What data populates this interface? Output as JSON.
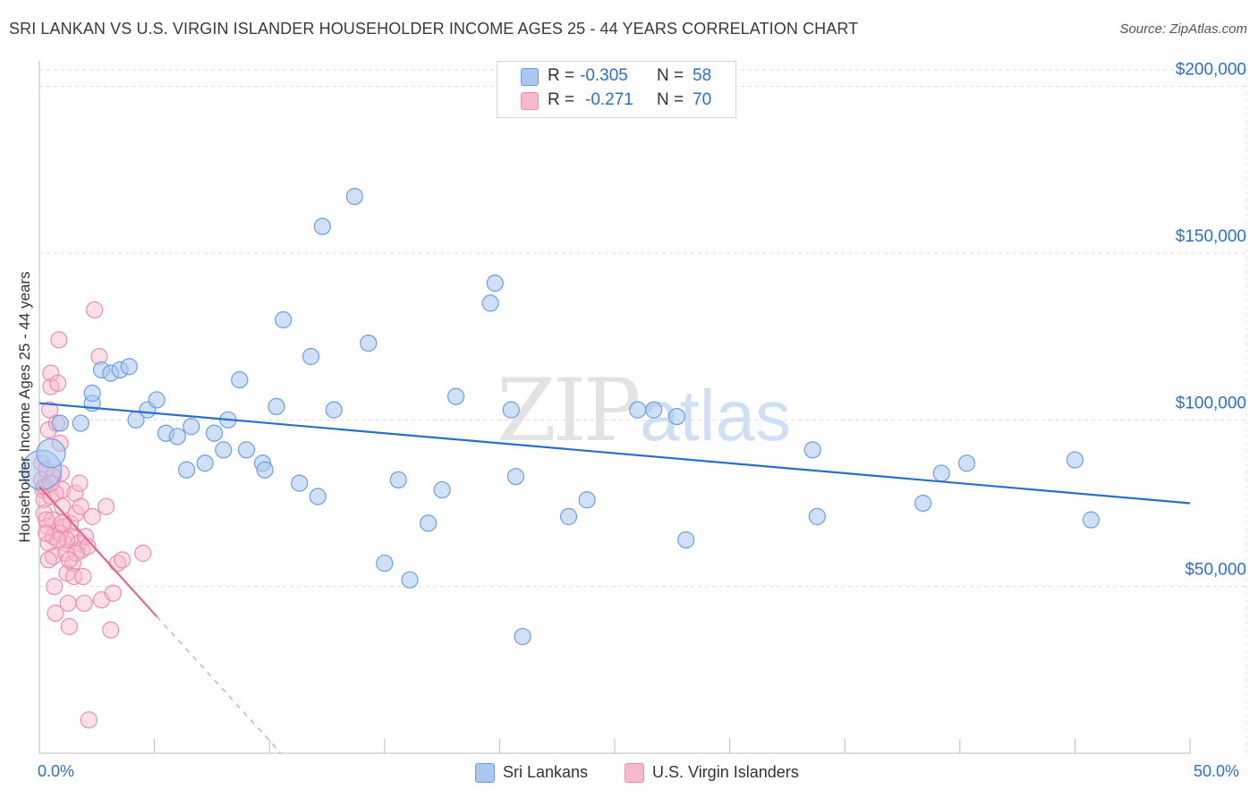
{
  "header": {
    "title": "SRI LANKAN VS U.S. VIRGIN ISLANDER HOUSEHOLDER INCOME AGES 25 - 44 YEARS CORRELATION CHART",
    "source": "Source: ZipAtlas.com"
  },
  "watermark": {
    "part1": "ZIP",
    "part2": "atlas"
  },
  "colors": {
    "blue_fill": "#aac7f0",
    "blue_stroke": "#6d9ee0",
    "blue_line": "#2a6fcb",
    "pink_fill": "#f6b8cc",
    "pink_stroke": "#ec8fad",
    "pink_line": "#e8638f",
    "grid": "#dddddd",
    "tick_label": "#2f6fc6"
  },
  "legend": {
    "rows": [
      {
        "r_label": "R = ",
        "r_value": "-0.305",
        "n_label": "N = ",
        "n_value": "58"
      },
      {
        "r_label": "R = ",
        "r_value": "-0.271",
        "n_label": "N = ",
        "n_value": "70"
      }
    ]
  },
  "chart_data": {
    "type": "scatter",
    "title": "SRI LANKAN VS U.S. VIRGIN ISLANDER HOUSEHOLDER INCOME AGES 25 - 44 YEARS CORRELATION CHART",
    "xlabel": "",
    "ylabel": "Householder Income Ages 25 - 44 years",
    "xlim": [
      0,
      50
    ],
    "ylim": [
      0,
      205000
    ],
    "x_tick_labels": [
      "0.0%",
      "50.0%"
    ],
    "y_ticks": [
      {
        "value": 50000,
        "label": "$50,000"
      },
      {
        "value": 100000,
        "label": "$100,000"
      },
      {
        "value": 150000,
        "label": "$150,000"
      },
      {
        "value": 200000,
        "label": "$200,000"
      }
    ],
    "legend_position": "top-center",
    "series": [
      {
        "name": "Sri Lankans",
        "color": "#aac7f0",
        "r": -0.305,
        "n": 58,
        "trend": {
          "x0": 0,
          "y0": 105000,
          "x1": 50,
          "y1": 75000
        },
        "points": [
          [
            0.1,
            85000,
            22
          ],
          [
            0.5,
            90000,
            16
          ],
          [
            0.9,
            99000,
            9
          ],
          [
            1.8,
            99000,
            9
          ],
          [
            2.3,
            105000,
            9
          ],
          [
            2.3,
            108000,
            9
          ],
          [
            2.7,
            115000,
            9
          ],
          [
            3.1,
            114000,
            9
          ],
          [
            3.5,
            115000,
            9
          ],
          [
            3.9,
            116000,
            9
          ],
          [
            4.2,
            100000,
            9
          ],
          [
            4.7,
            103000,
            9
          ],
          [
            5.1,
            106000,
            9
          ],
          [
            5.5,
            96000,
            9
          ],
          [
            6.0,
            95000,
            9
          ],
          [
            6.4,
            85000,
            9
          ],
          [
            6.6,
            98000,
            9
          ],
          [
            7.2,
            87000,
            9
          ],
          [
            7.6,
            96000,
            9
          ],
          [
            8.0,
            91000,
            9
          ],
          [
            8.2,
            100000,
            9
          ],
          [
            8.7,
            112000,
            9
          ],
          [
            9.0,
            91000,
            9
          ],
          [
            9.7,
            87000,
            9
          ],
          [
            9.8,
            85000,
            9
          ],
          [
            10.3,
            104000,
            9
          ],
          [
            10.6,
            130000,
            9
          ],
          [
            11.3,
            81000,
            9
          ],
          [
            11.8,
            119000,
            9
          ],
          [
            12.3,
            158000,
            9
          ],
          [
            12.1,
            77000,
            9
          ],
          [
            12.8,
            103000,
            9
          ],
          [
            13.7,
            167000,
            9
          ],
          [
            14.3,
            123000,
            9
          ],
          [
            15.0,
            57000,
            9
          ],
          [
            15.6,
            82000,
            9
          ],
          [
            16.1,
            52000,
            9
          ],
          [
            16.9,
            69000,
            9
          ],
          [
            17.5,
            79000,
            9
          ],
          [
            18.1,
            107000,
            9
          ],
          [
            19.6,
            135000,
            9
          ],
          [
            19.8,
            141000,
            9
          ],
          [
            20.5,
            103000,
            9
          ],
          [
            20.7,
            83000,
            9
          ],
          [
            21.0,
            35000,
            9
          ],
          [
            23.0,
            71000,
            9
          ],
          [
            23.8,
            76000,
            9
          ],
          [
            26.0,
            103000,
            9
          ],
          [
            26.7,
            103000,
            9
          ],
          [
            27.7,
            101000,
            9
          ],
          [
            28.1,
            64000,
            9
          ],
          [
            33.6,
            91000,
            9
          ],
          [
            33.8,
            71000,
            9
          ],
          [
            38.4,
            75000,
            9
          ],
          [
            39.2,
            84000,
            9
          ],
          [
            40.3,
            87000,
            9
          ],
          [
            45.0,
            88000,
            9
          ],
          [
            45.7,
            70000,
            9
          ]
        ]
      },
      {
        "name": "U.S. Virgin Islanders",
        "color": "#f6b8cc",
        "r": -0.271,
        "n": 70,
        "trend_solid": {
          "x0": 0,
          "y0": 80000,
          "x1": 5.1,
          "y1": 41000
        },
        "trend_dashed": {
          "x0": 5.1,
          "y0": 41000,
          "x1": 10.5,
          "y1": 0
        },
        "points": [
          [
            0.1,
            87000,
            9
          ],
          [
            0.1,
            82000,
            9
          ],
          [
            0.15,
            79000,
            9
          ],
          [
            0.2,
            76000,
            9
          ],
          [
            0.2,
            72000,
            9
          ],
          [
            0.3,
            85000,
            9
          ],
          [
            0.3,
            80000,
            9
          ],
          [
            0.35,
            68000,
            9
          ],
          [
            0.4,
            63000,
            9
          ],
          [
            0.4,
            97000,
            9
          ],
          [
            0.45,
            103000,
            9
          ],
          [
            0.5,
            110000,
            9
          ],
          [
            0.5,
            114000,
            9
          ],
          [
            0.5,
            77000,
            9
          ],
          [
            0.55,
            70000,
            9
          ],
          [
            0.6,
            65000,
            9
          ],
          [
            0.6,
            59000,
            9
          ],
          [
            0.65,
            50000,
            9
          ],
          [
            0.7,
            42000,
            9
          ],
          [
            0.75,
            99000,
            9
          ],
          [
            0.8,
            111000,
            9
          ],
          [
            0.85,
            124000,
            9
          ],
          [
            0.9,
            93000,
            9
          ],
          [
            0.95,
            84000,
            9
          ],
          [
            1.0,
            79000,
            9
          ],
          [
            1.0,
            74000,
            9
          ],
          [
            1.05,
            68000,
            9
          ],
          [
            1.1,
            63000,
            9
          ],
          [
            1.15,
            60000,
            9
          ],
          [
            1.2,
            54000,
            9
          ],
          [
            1.25,
            45000,
            9
          ],
          [
            1.3,
            38000,
            9
          ],
          [
            1.35,
            69000,
            9
          ],
          [
            1.4,
            65000,
            9
          ],
          [
            1.45,
            57000,
            9
          ],
          [
            1.5,
            53000,
            9
          ],
          [
            1.55,
            78000,
            9
          ],
          [
            1.6,
            72000,
            9
          ],
          [
            1.7,
            63000,
            9
          ],
          [
            1.75,
            81000,
            9
          ],
          [
            1.8,
            74000,
            9
          ],
          [
            1.85,
            61000,
            9
          ],
          [
            1.9,
            53000,
            9
          ],
          [
            1.95,
            45000,
            9
          ],
          [
            2.0,
            65000,
            9
          ],
          [
            2.1,
            62000,
            9
          ],
          [
            2.15,
            10000,
            9
          ],
          [
            2.3,
            71000,
            9
          ],
          [
            2.4,
            133000,
            9
          ],
          [
            2.6,
            119000,
            9
          ],
          [
            2.7,
            46000,
            9
          ],
          [
            2.9,
            74000,
            9
          ],
          [
            3.1,
            37000,
            9
          ],
          [
            3.2,
            48000,
            9
          ],
          [
            3.4,
            57000,
            9
          ],
          [
            3.6,
            58000,
            9
          ],
          [
            4.5,
            60000,
            9
          ],
          [
            0.3,
            70000,
            9
          ],
          [
            0.6,
            83000,
            9
          ],
          [
            0.7,
            78000,
            9
          ],
          [
            0.9,
            66000,
            9
          ],
          [
            1.2,
            64000,
            9
          ],
          [
            0.4,
            58000,
            9
          ],
          [
            1.0,
            69000,
            9
          ],
          [
            0.2,
            80000,
            9
          ],
          [
            0.8,
            64000,
            9
          ],
          [
            1.6,
            60000,
            9
          ],
          [
            0.5,
            81000,
            9
          ],
          [
            0.3,
            66000,
            9
          ],
          [
            1.3,
            58000,
            9
          ]
        ]
      }
    ]
  }
}
